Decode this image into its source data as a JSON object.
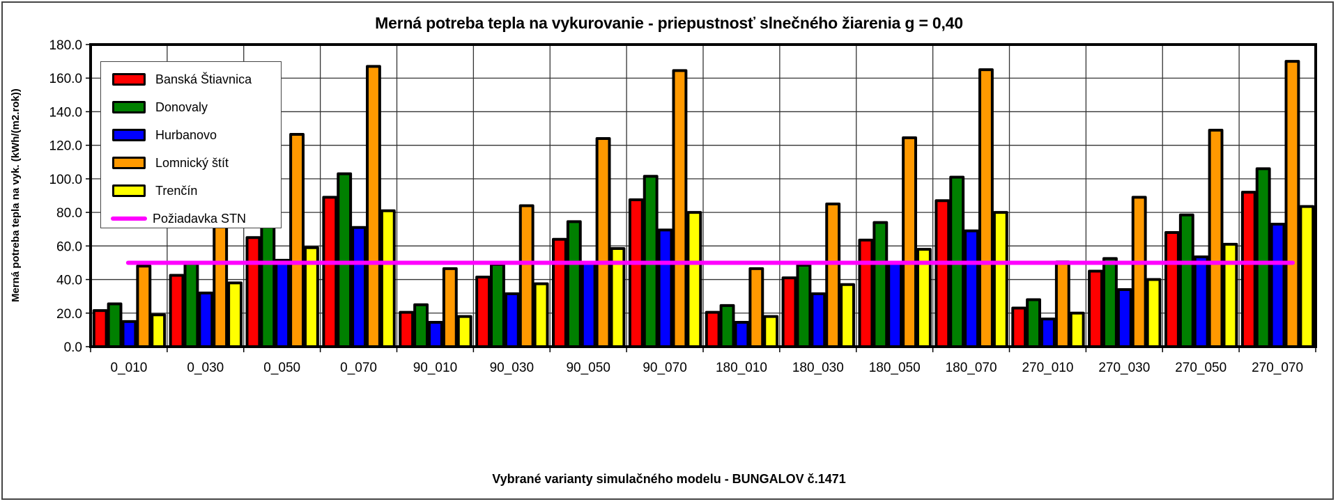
{
  "chart_data": {
    "type": "bar",
    "title": "Merná potreba tepla na vykurovanie - priepustnosť slnečného žiarenia g = 0,40",
    "xlabel": "Vybrané varianty simulačného modelu - BUNGALOV č.1471",
    "ylabel": "Merná potreba tepla na vyk. (kWh/(m2.rok))",
    "ylim": [
      0,
      180
    ],
    "yticks": [
      "0.0",
      "20.0",
      "40.0",
      "60.0",
      "80.0",
      "100.0",
      "120.0",
      "140.0",
      "160.0",
      "180.0"
    ],
    "grid": true,
    "legend_position": "upper-left-inside",
    "categories": [
      "0_010",
      "0_030",
      "0_050",
      "0_070",
      "90_010",
      "90_030",
      "90_050",
      "90_070",
      "180_010",
      "180_030",
      "180_050",
      "180_070",
      "270_010",
      "270_030",
      "270_050",
      "270_070"
    ],
    "series": [
      {
        "name": "Banská Štiavnica",
        "color": "#ff0000",
        "values": [
          21.5,
          42.5,
          65.0,
          89.0,
          20.5,
          41.5,
          64.0,
          87.5,
          20.5,
          41.0,
          63.5,
          87.0,
          23.0,
          45.0,
          68.0,
          92.0
        ]
      },
      {
        "name": "Donovaly",
        "color": "#008000",
        "values": [
          25.5,
          49.5,
          76.0,
          103.0,
          25.0,
          49.0,
          74.5,
          101.5,
          24.5,
          48.5,
          74.0,
          101.0,
          28.0,
          52.5,
          78.5,
          106.0
        ]
      },
      {
        "name": "Hurbanovo",
        "color": "#0000ff",
        "values": [
          15.0,
          32.0,
          51.5,
          71.0,
          14.5,
          31.5,
          50.0,
          69.5,
          14.5,
          31.5,
          50.0,
          69.0,
          16.5,
          34.0,
          53.5,
          73.0
        ]
      },
      {
        "name": "Lomnický štít",
        "color": "#ff9900",
        "values": [
          48.0,
          86.5,
          126.5,
          167.0,
          46.5,
          84.0,
          124.0,
          164.5,
          46.5,
          85.0,
          124.5,
          165.0,
          50.5,
          89.0,
          129.0,
          170.0
        ]
      },
      {
        "name": "Trenčín",
        "color": "#ffff00",
        "values": [
          19.0,
          38.0,
          59.0,
          81.0,
          18.0,
          37.5,
          58.5,
          80.0,
          18.0,
          37.0,
          58.0,
          80.0,
          20.0,
          40.0,
          61.0,
          83.5
        ]
      }
    ],
    "reference_line": {
      "name": "Požiadavka STN",
      "color": "#ff00ff",
      "value": 50.0
    }
  },
  "legend": {
    "items": [
      {
        "label": "Banská Štiavnica",
        "color": "#ff0000"
      },
      {
        "label": "Donovaly",
        "color": "#008000"
      },
      {
        "label": "Hurbanovo",
        "color": "#0000ff"
      },
      {
        "label": "Lomnický štít",
        "color": "#ff9900"
      },
      {
        "label": "Trenčín",
        "color": "#ffff00"
      },
      {
        "label": "Požiadavka STN",
        "color": "#ff00ff"
      }
    ]
  }
}
